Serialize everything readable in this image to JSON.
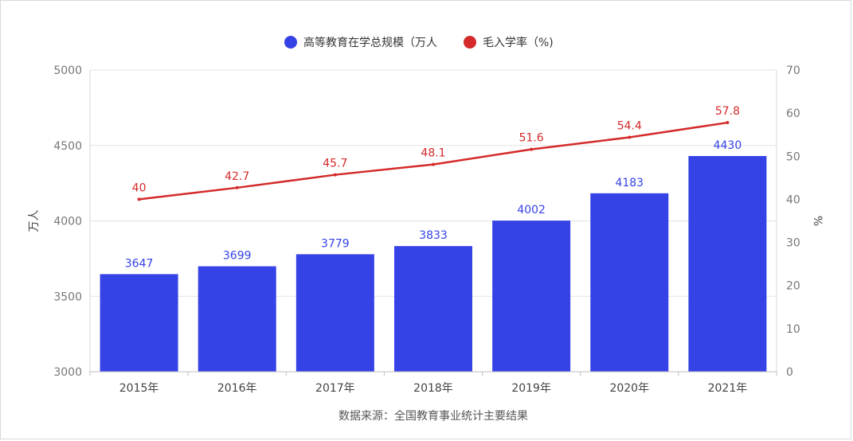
{
  "chart_data": {
    "type": "bar",
    "categories": [
      "2015年",
      "2016年",
      "2017年",
      "2018年",
      "2019年",
      "2020年",
      "2021年"
    ],
    "series": [
      {
        "name": "高等教育在学总规模（万人",
        "type": "bar",
        "axis": "left",
        "color": "#3542e5",
        "values": [
          3647,
          3699,
          3779,
          3833,
          4002,
          4183,
          4430
        ]
      },
      {
        "name": "毛入学率（%)",
        "type": "line",
        "axis": "right",
        "color": "#d42a2a",
        "values": [
          40,
          42.7,
          45.7,
          48.1,
          51.6,
          54.4,
          57.8
        ]
      }
    ],
    "ylabel": "万人",
    "y2label": "%",
    "ylim": [
      3000,
      5000
    ],
    "y2lim": [
      0,
      70
    ],
    "yticks": [
      3000,
      3500,
      4000,
      4500,
      5000
    ],
    "y2ticks": [
      0,
      10,
      20,
      30,
      40,
      50,
      60,
      70
    ],
    "source": "数据来源：全国教育事业统计主要结果",
    "legend_position": "top",
    "grid": true
  }
}
